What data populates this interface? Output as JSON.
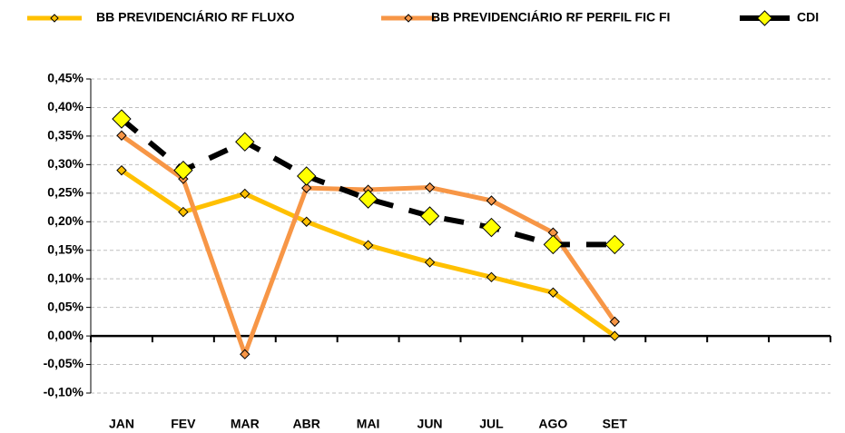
{
  "chart_data": {
    "type": "line",
    "categories": [
      "JAN",
      "FEV",
      "MAR",
      "ABR",
      "MAI",
      "JUN",
      "JUL",
      "AGO",
      "SET",
      null,
      null,
      null
    ],
    "series": [
      {
        "name": "BB PREVIDENCIÁRIO RF FLUXO",
        "color": "#ffc000",
        "values": [
          0.29,
          0.217,
          0.249,
          0.2,
          0.159,
          0.129,
          0.103,
          0.076,
          0.0,
          null,
          null,
          null
        ]
      },
      {
        "name": "BB PREVIDENCIÁRIO RF PERFIL FIC FI",
        "color": "#f79646",
        "values": [
          0.351,
          0.275,
          -0.032,
          0.259,
          0.256,
          0.26,
          0.237,
          0.181,
          0.025,
          null,
          null,
          null
        ]
      },
      {
        "name": "CDI",
        "color": "#000000",
        "values": [
          0.38,
          0.29,
          0.34,
          0.28,
          0.24,
          0.21,
          0.19,
          0.16,
          0.16,
          null,
          null,
          null
        ]
      }
    ],
    "ylim": [
      -0.1,
      0.45
    ],
    "yticks": [
      {
        "value": -0.1,
        "label": "-0,10%"
      },
      {
        "value": -0.05,
        "label": "-0,05%"
      },
      {
        "value": 0,
        "label": "0,00%"
      },
      {
        "value": 0.05,
        "label": "0,05%"
      },
      {
        "value": 0.1,
        "label": "0,10%"
      },
      {
        "value": 0.15,
        "label": "0,15%"
      },
      {
        "value": 0.2,
        "label": "0,20%"
      },
      {
        "value": 0.25,
        "label": "0,25%"
      },
      {
        "value": 0.3,
        "label": "0,30%"
      },
      {
        "value": 0.35,
        "label": "0,35%"
      },
      {
        "value": 0.4,
        "label": "0,40%"
      },
      {
        "value": 0.45,
        "label": "0,45%"
      }
    ],
    "grid": true,
    "legend": "top"
  }
}
